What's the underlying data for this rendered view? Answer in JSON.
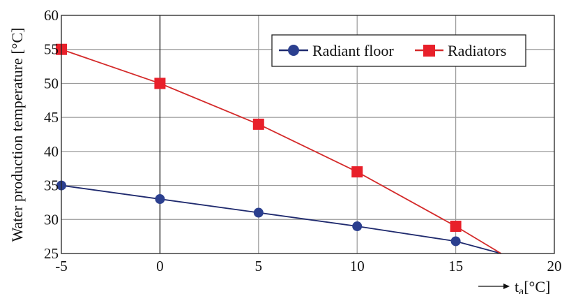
{
  "chart_data": {
    "type": "line",
    "ylabel": "Water  production temperature [°C]",
    "xlabel": "t",
    "xlabel_sub": "a",
    "xlabel_unit": "[°C]",
    "xlim": [
      -5,
      20
    ],
    "ylim": [
      25,
      60
    ],
    "xticks": [
      -5,
      0,
      5,
      10,
      15,
      20
    ],
    "yticks": [
      25,
      30,
      35,
      40,
      45,
      50,
      55,
      60
    ],
    "grid": true,
    "legend_position": "top-right",
    "series": [
      {
        "name": "Radiant floor",
        "color": "#2b3f8f",
        "line_color": "#1f2a6e",
        "marker": "circle",
        "x": [
          -5,
          0,
          5,
          10,
          15
        ],
        "y": [
          35,
          33,
          31,
          29,
          26.8
        ],
        "line_end": [
          17.3,
          25
        ]
      },
      {
        "name": "Radiators",
        "color": "#e8202a",
        "line_color": "#d42a2a",
        "marker": "square",
        "x": [
          -5,
          0,
          5,
          10,
          15
        ],
        "y": [
          55,
          50,
          44,
          37,
          29
        ],
        "line_end": [
          17.3,
          25
        ]
      }
    ]
  }
}
